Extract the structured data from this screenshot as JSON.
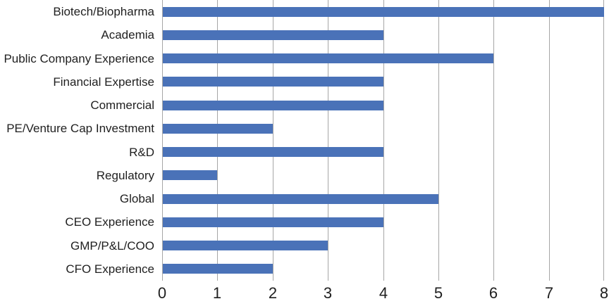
{
  "chart_data": {
    "type": "bar",
    "orientation": "horizontal",
    "title": "",
    "xlabel": "",
    "ylabel": "",
    "categories": [
      "Biotech/Biopharma",
      "Academia",
      "Public Company Experience",
      "Financial Expertise",
      "Commercial",
      "PE/Venture Cap Investment",
      "R&D",
      "Regulatory",
      "Global",
      "CEO Experience",
      "GMP/P&L/COO",
      "CFO Experience"
    ],
    "values": [
      8,
      4,
      6,
      4,
      4,
      2,
      4,
      1,
      5,
      4,
      3,
      2
    ],
    "xlim": [
      0,
      8
    ],
    "x_ticks": [
      "0",
      "1",
      "2",
      "3",
      "4",
      "5",
      "6",
      "7",
      "8"
    ],
    "grid": true,
    "legend": false,
    "bar_color": "#4a72b8",
    "gridline_color": "#a6a6a6",
    "label_color": "#1f1f1f",
    "tick_label_color": "#1f1f1f"
  }
}
